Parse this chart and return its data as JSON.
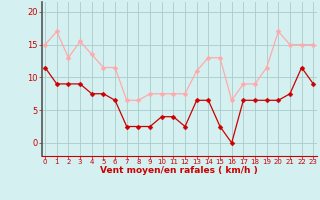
{
  "hours": [
    0,
    1,
    2,
    3,
    4,
    5,
    6,
    7,
    8,
    9,
    10,
    11,
    12,
    13,
    14,
    15,
    16,
    17,
    18,
    19,
    20,
    21,
    22,
    23
  ],
  "wind_avg": [
    11.5,
    9,
    9,
    9,
    7.5,
    7.5,
    6.5,
    2.5,
    2.5,
    2.5,
    4,
    4,
    2.5,
    6.5,
    6.5,
    2.5,
    0,
    6.5,
    6.5,
    6.5,
    6.5,
    7.5,
    11.5,
    9
  ],
  "wind_gust": [
    15,
    17,
    13,
    15.5,
    13.5,
    11.5,
    11.5,
    6.5,
    6.5,
    7.5,
    7.5,
    7.5,
    7.5,
    11,
    13,
    13,
    6.5,
    9,
    9,
    11.5,
    17,
    15,
    15,
    15
  ],
  "avg_color": "#cc0000",
  "gust_color": "#ffaaaa",
  "bg_color": "#d5f0f0",
  "grid_color": "#aacccc",
  "xlabel": "Vent moyen/en rafales ( km/h )",
  "xlabel_color": "#cc0000",
  "yticks": [
    0,
    5,
    10,
    15,
    20
  ],
  "xticks": [
    0,
    1,
    2,
    3,
    4,
    5,
    6,
    7,
    8,
    9,
    10,
    11,
    12,
    13,
    14,
    15,
    16,
    17,
    18,
    19,
    20,
    21,
    22,
    23
  ],
  "ylim": [
    -2,
    21.5
  ],
  "xlim": [
    -0.3,
    23.3
  ],
  "tick_color": "#cc0000",
  "marker_size": 2.5,
  "linewidth": 0.9
}
